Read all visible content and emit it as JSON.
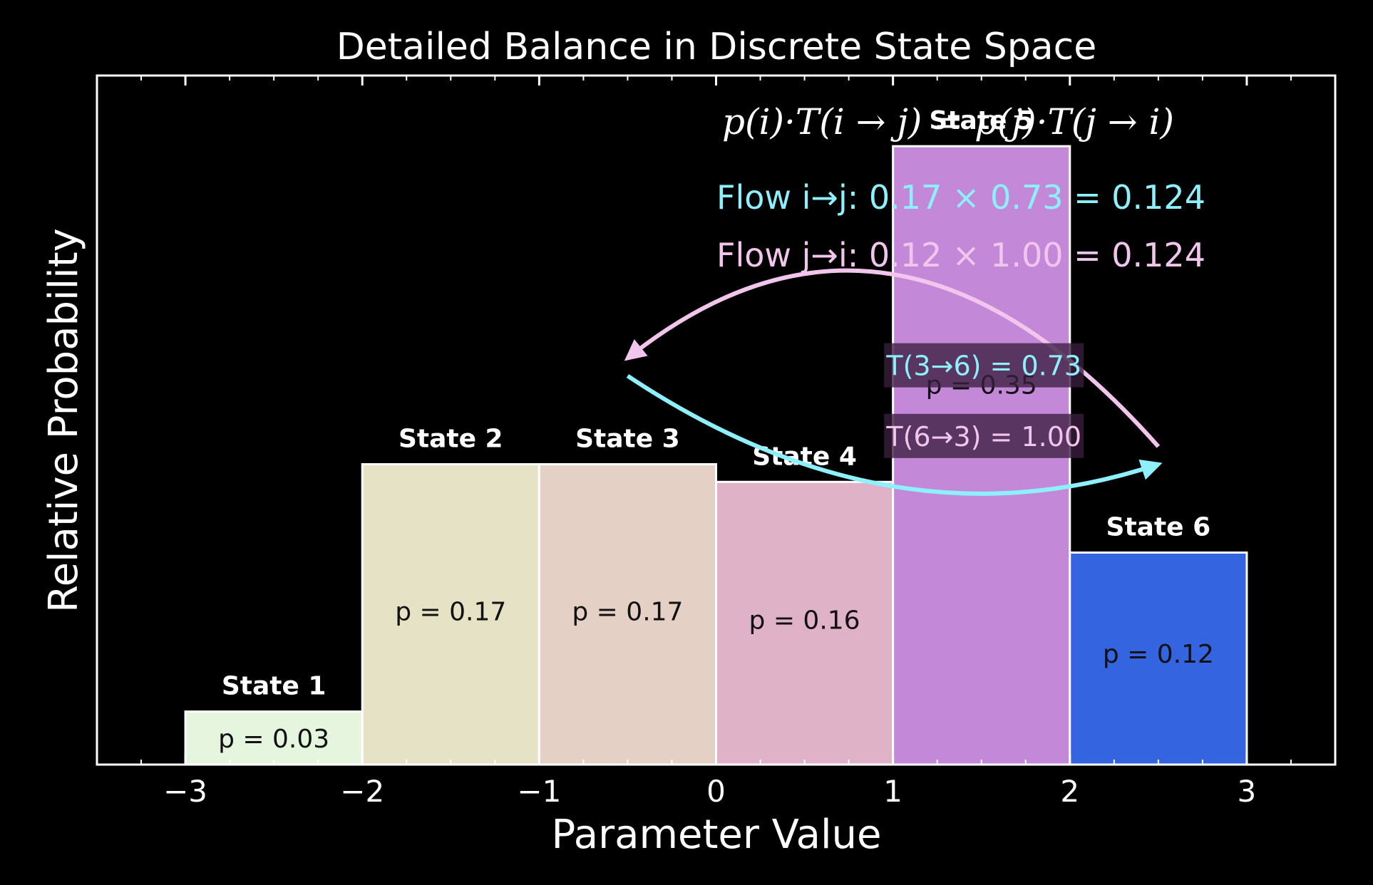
{
  "chart_data": {
    "type": "bar",
    "title": "Detailed Balance in Discrete State Space",
    "xlabel": "Parameter Value",
    "ylabel": "Relative Probability",
    "xlim": [
      -3.5,
      3.5
    ],
    "ylim": [
      0,
      0.39
    ],
    "xticks": [
      -3,
      -2,
      -1,
      0,
      1,
      2,
      3
    ],
    "xtick_labels": [
      "−3",
      "−2",
      "−1",
      "0",
      "1",
      "2",
      "3"
    ],
    "show_yticks": false,
    "grid": false,
    "bars": [
      {
        "state": "State 1",
        "x0": -3,
        "x1": -2,
        "p": 0.03,
        "p_label": "p = 0.03",
        "color": "#e6f5de"
      },
      {
        "state": "State 2",
        "x0": -2,
        "x1": -1,
        "p": 0.17,
        "p_label": "p = 0.17",
        "color": "#e6e2c6"
      },
      {
        "state": "State 3",
        "x0": -1,
        "x1": 0,
        "p": 0.17,
        "p_label": "p = 0.17",
        "color": "#e4d0c4"
      },
      {
        "state": "State 4",
        "x0": 0,
        "x1": 1,
        "p": 0.16,
        "p_label": "p = 0.16",
        "color": "#dfb2c8"
      },
      {
        "state": "State 5",
        "x0": 1,
        "x1": 2,
        "p": 0.35,
        "p_label": "p = 0.35",
        "color": "#c488d9"
      },
      {
        "state": "State 6",
        "x0": 2,
        "x1": 3,
        "p": 0.12,
        "p_label": "p = 0.12",
        "color": "#3564e0"
      }
    ],
    "equation": "p(i)·T(i → j) = p(j)·T(j → i)",
    "flows": [
      {
        "label": "Flow i→j:  0.17 × 0.73 = 0.124",
        "color": "#8ef0fc"
      },
      {
        "label": "Flow j→i:  0.12 × 1.00 = 0.124",
        "color": "#f2c6ec"
      }
    ],
    "transitions": [
      {
        "label": "T(3→6) = 0.73",
        "color": "#8ef0fc",
        "from_x": -0.5,
        "from_y": 0.22,
        "to_x": 2.5,
        "to_y": 0.17,
        "control_x": 1.0,
        "control_y": 0.12
      },
      {
        "label": "T(6→3) = 1.00",
        "color": "#f2c6ec",
        "from_x": 2.5,
        "from_y": 0.18,
        "to_x": -0.5,
        "to_y": 0.23,
        "control_x": 1.0,
        "control_y": 0.35
      }
    ]
  }
}
